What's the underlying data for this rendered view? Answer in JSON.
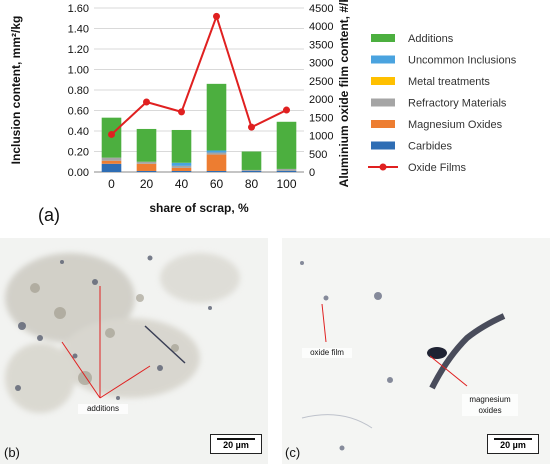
{
  "chart_data": {
    "type": "bar",
    "categories": [
      "0",
      "20",
      "40",
      "60",
      "80",
      "100"
    ],
    "xlabel": "share of scrap, %",
    "ylabel": "Inclusion content, mm²/kg",
    "y2label": "Aluminium oxide film content, #/kg",
    "ylim": [
      0,
      1.6
    ],
    "y2lim": [
      0,
      4500
    ],
    "yticks": [
      "0.00",
      "0.20",
      "0.40",
      "0.60",
      "0.80",
      "1.00",
      "1.20",
      "1.40",
      "1.60"
    ],
    "y2ticks": [
      "0",
      "500",
      "1000",
      "1500",
      "2000",
      "2500",
      "3000",
      "3500",
      "4000",
      "4500"
    ],
    "stacked": true,
    "series": [
      {
        "name": "Carbides",
        "color": "#2e6db4",
        "values": [
          0.08,
          0.01,
          0.01,
          0.01,
          0.01,
          0.01
        ]
      },
      {
        "name": "Magnesium Oxides",
        "color": "#ed7d31",
        "values": [
          0.03,
          0.07,
          0.03,
          0.16,
          0.0,
          0.0
        ]
      },
      {
        "name": "Refractory Materials",
        "color": "#a5a5a5",
        "values": [
          0.03,
          0.02,
          0.02,
          0.02,
          0.01,
          0.02
        ]
      },
      {
        "name": "Metal treatments",
        "color": "#ffc000",
        "values": [
          0.0,
          0.0,
          0.0,
          0.0,
          0.0,
          0.0
        ]
      },
      {
        "name": "Uncommon Inclusions",
        "color": "#4aa3df",
        "values": [
          0.0,
          0.0,
          0.03,
          0.02,
          0.0,
          0.0
        ]
      },
      {
        "name": "Additions",
        "color": "#4caf3f",
        "values": [
          0.39,
          0.32,
          0.32,
          0.65,
          0.18,
          0.46
        ]
      }
    ],
    "line": {
      "name": "Oxide Films",
      "color": "#e02020",
      "axis": "y2",
      "values": [
        1030,
        1920,
        1650,
        4270,
        1230,
        1700
      ]
    },
    "legend": [
      "Additions",
      "Uncommon Inclusions",
      "Metal treatments",
      "Refractory Materials",
      "Magnesium Oxides",
      "Carbides",
      "Oxide Films"
    ],
    "legend_position": "right"
  },
  "panels": {
    "a": "(a)",
    "b": "(b)",
    "c": "(c)"
  },
  "micrographs": {
    "b": {
      "annotation": "additions",
      "scale": "20 µm"
    },
    "c": {
      "annotation_1": "oxide film",
      "annotation_2": "magnesium oxides",
      "scale": "20 µm"
    }
  }
}
